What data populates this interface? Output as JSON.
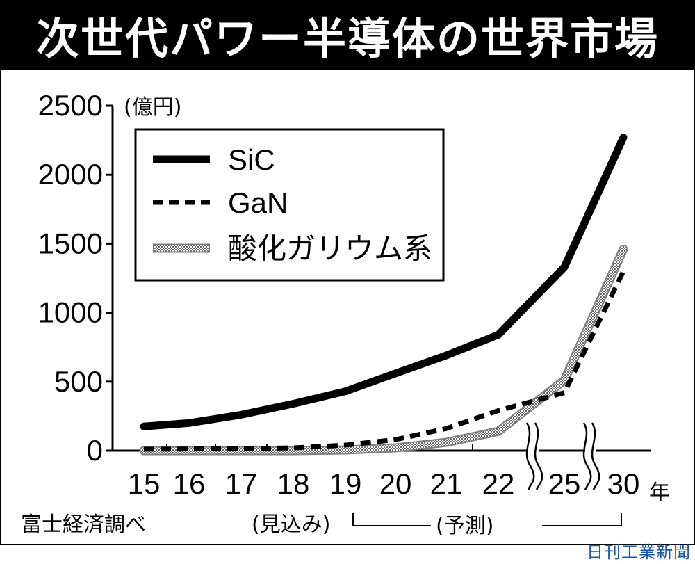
{
  "header": {
    "title": "次世代パワー半導体の世界市場"
  },
  "chart_data": {
    "type": "line",
    "title": "次世代パワー半導体の世界市場",
    "ylabel": "(億円)",
    "xlabel": "年",
    "ylim": [
      0,
      2500
    ],
    "yticks": [
      "2500",
      "2000",
      "1500",
      "1000",
      "500",
      "0"
    ],
    "categories": [
      "15",
      "16",
      "17",
      "18",
      "19",
      "20",
      "21",
      "22",
      "25",
      "30"
    ],
    "axis_breaks": [
      "22-25",
      "25-30"
    ],
    "grid": false,
    "legend_position": "top-left",
    "series": [
      {
        "name": "SiC",
        "style": "solid",
        "color": "#000000",
        "values": [
          175,
          200,
          260,
          340,
          430,
          560,
          690,
          840,
          1330,
          2270
        ]
      },
      {
        "name": "GaN",
        "style": "dashed",
        "color": "#000000",
        "values": [
          10,
          12,
          15,
          20,
          40,
          80,
          160,
          290,
          420,
          1300
        ]
      },
      {
        "name": "酸化ガリウム系",
        "style": "dotted-gray",
        "color": "#b0b0b0",
        "values": [
          0,
          0,
          0,
          0,
          5,
          20,
          60,
          140,
          510,
          1460
        ]
      }
    ]
  },
  "annotations": {
    "actual_estimate": "(見込み)",
    "forecast": "(予測)",
    "source": "富士経済調べ",
    "watermark": "日刊工業新聞"
  }
}
